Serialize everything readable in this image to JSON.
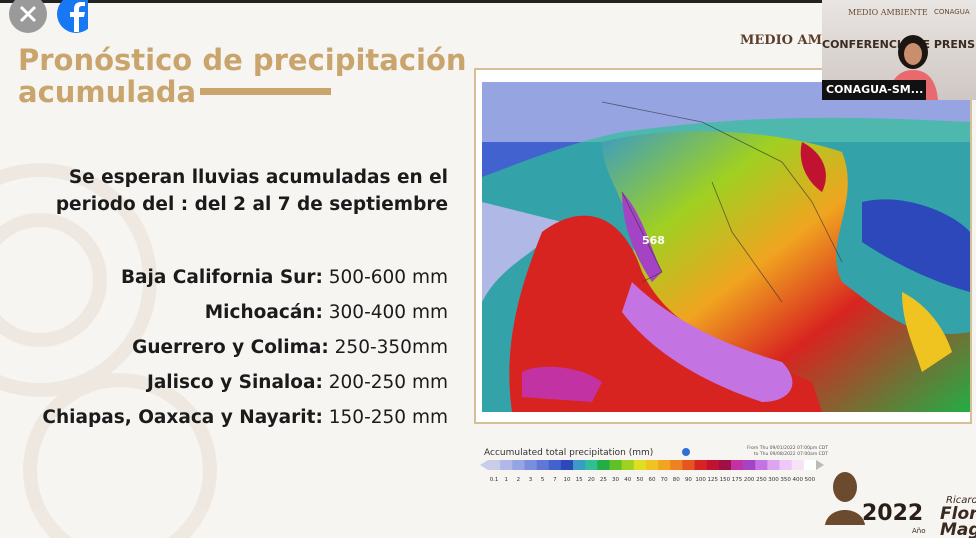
{
  "overlay": {
    "webcam_header": "MEDIO AMBIENTE",
    "webcam_header2": "CONAGUA",
    "webcam_banner": "CONFERENCIA DE PRENS",
    "webcam_label": "CONAGUA-SM..."
  },
  "slide": {
    "title": [
      "Pronóstico de precipitación",
      "acumulada"
    ],
    "intro": [
      "Se esperan lluvias acumuladas en el",
      "periodo del : del 2 al 7 de septiembre"
    ],
    "items": [
      {
        "region": "Baja California Sur:",
        "amount": "500-600 mm"
      },
      {
        "region": "Michoacán:",
        "amount": "300-400 mm"
      },
      {
        "region": "Guerrero y Colima:",
        "amount": "250-350mm"
      },
      {
        "region": "Jalisco y Sinaloa:",
        "amount": "200-250 mm"
      },
      {
        "region": "Chiapas, Oaxaca y Nayarit:",
        "amount": "150-250 mm"
      }
    ],
    "logo": "MEDIO AMBIENTE",
    "map": {
      "peak_label": "568",
      "legend": {
        "title": "Accumulated total precipitation (mm)",
        "period": [
          "From Thu 09/01/2022 07:00pm CDT",
          "to Thu 09/08/2022 07:00am CDT"
        ],
        "ticks": [
          0.1,
          1,
          2,
          3,
          5,
          7,
          10,
          15,
          20,
          25,
          30,
          40,
          50,
          60,
          70,
          80,
          90,
          100,
          125,
          150,
          175,
          200,
          250,
          300,
          350,
          400,
          500
        ],
        "colors": [
          "#c9cde8",
          "#b0b8e6",
          "#96a4e2",
          "#7a8ede",
          "#5f78d8",
          "#4262cf",
          "#2c48bb",
          "#3a9cc4",
          "#2fbf98",
          "#22ad45",
          "#5ec224",
          "#9fd022",
          "#dede22",
          "#f0c420",
          "#f0a420",
          "#ee8220",
          "#e65420",
          "#d82420",
          "#c21232",
          "#a01044",
          "#c232a2",
          "#a444c4",
          "#c474e2",
          "#dea4f2",
          "#efc8f8",
          "#f8e2f8",
          "#ffffff"
        ]
      }
    }
  },
  "footer": {
    "name": [
      "Ricardo",
      "Flores",
      "Magón"
    ],
    "year": "2022",
    "sub": "Año"
  }
}
